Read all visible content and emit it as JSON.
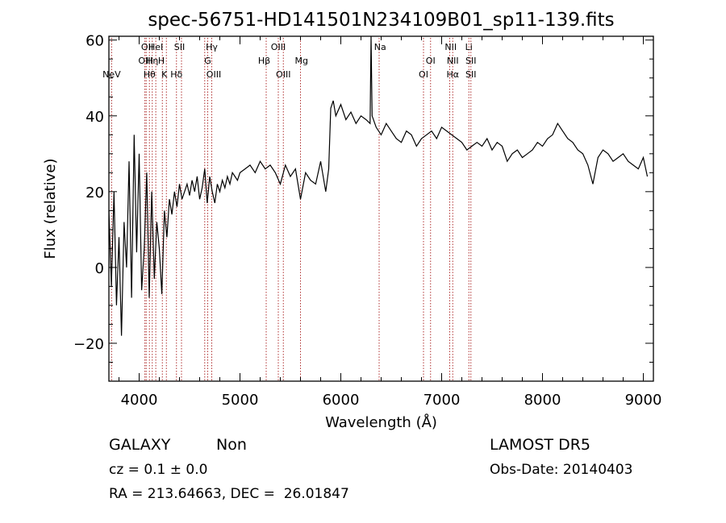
{
  "chart_data": {
    "type": "line",
    "title": "spec-56751-HD141501N234109B01_sp11-139.fits",
    "xlabel": "Wavelength (Å)",
    "ylabel": "Flux (relative)",
    "xlim": [
      3700,
      9100
    ],
    "ylim": [
      -30,
      61
    ],
    "xticks": [
      4000,
      5000,
      6000,
      7000,
      8000,
      9000
    ],
    "xtick_labels": [
      "4000",
      "5000",
      "6000",
      "7000",
      "8000",
      "9000"
    ],
    "yticks": [
      -20,
      0,
      20,
      40,
      60
    ],
    "ytick_labels": [
      "−20",
      "0",
      "20",
      "40",
      "60"
    ],
    "grid": false,
    "line_color": "#000000",
    "marker_color": "#b03030",
    "series": [
      {
        "x": [
          3700,
          3725,
          3750,
          3775,
          3800,
          3825,
          3850,
          3875,
          3900,
          3925,
          3950,
          3975,
          4000,
          4025,
          4050,
          4075,
          4100,
          4125,
          4150,
          4175,
          4200,
          4225,
          4250,
          4275,
          4300,
          4325,
          4350,
          4375,
          4400,
          4425,
          4450,
          4475,
          4500,
          4525,
          4550,
          4575,
          4600,
          4625,
          4650,
          4675,
          4700,
          4725,
          4750,
          4775,
          4800,
          4825,
          4850,
          4875,
          4900,
          4925,
          4950,
          4975,
          5000,
          5050,
          5100,
          5150,
          5200,
          5250,
          5300,
          5350,
          5400,
          5450,
          5500,
          5550,
          5600,
          5650,
          5700,
          5750,
          5800,
          5850,
          5880,
          5900,
          5925,
          5950,
          6000,
          6050,
          6100,
          6150,
          6200,
          6250,
          6290,
          6300,
          6310,
          6350,
          6400,
          6450,
          6500,
          6550,
          6600,
          6650,
          6700,
          6750,
          6800,
          6850,
          6900,
          6950,
          7000,
          7050,
          7100,
          7150,
          7200,
          7250,
          7300,
          7350,
          7400,
          7450,
          7500,
          7550,
          7600,
          7650,
          7700,
          7750,
          7800,
          7850,
          7900,
          7950,
          8000,
          8050,
          8100,
          8150,
          8200,
          8250,
          8300,
          8350,
          8400,
          8450,
          8500,
          8550,
          8600,
          8650,
          8700,
          8750,
          8800,
          8850,
          8900,
          8950,
          9000,
          9040
        ],
        "y": [
          15,
          -5,
          20,
          -10,
          8,
          -18,
          12,
          0,
          28,
          -8,
          35,
          4,
          30,
          -6,
          5,
          25,
          -8,
          20,
          -3,
          12,
          5,
          -7,
          15,
          8,
          18,
          14,
          20,
          16,
          22,
          18,
          20,
          22,
          19,
          23,
          20,
          24,
          18,
          21,
          26,
          17,
          24,
          20,
          17,
          22,
          20,
          23,
          21,
          24,
          22,
          25,
          24,
          23,
          25,
          26,
          27,
          25,
          28,
          26,
          27,
          25,
          22,
          27,
          24,
          26,
          18,
          25,
          23,
          22,
          28,
          20,
          26,
          42,
          44,
          40,
          43,
          39,
          41,
          38,
          40,
          39,
          38,
          61,
          40,
          37,
          35,
          38,
          36,
          34,
          33,
          36,
          35,
          32,
          34,
          35,
          36,
          34,
          37,
          36,
          35,
          34,
          33,
          31,
          32,
          33,
          32,
          34,
          31,
          33,
          32,
          28,
          30,
          31,
          29,
          30,
          31,
          33,
          32,
          34,
          35,
          38,
          36,
          34,
          33,
          31,
          30,
          27,
          22,
          29,
          31,
          30,
          28,
          29,
          30,
          28,
          27,
          26,
          29,
          24
        ]
      }
    ],
    "line_markers": [
      {
        "label": "NeV",
        "x": 3727,
        "row": 3
      },
      {
        "label": "OII",
        "x": 4080,
        "row": 1
      },
      {
        "label": "OIII",
        "x": 4065,
        "row": 2
      },
      {
        "label": "Hθ",
        "x": 4102,
        "row": 3
      },
      {
        "label": "Hη",
        "x": 4130,
        "row": 2
      },
      {
        "label": "HeI",
        "x": 4165,
        "row": 1
      },
      {
        "label": "H",
        "x": 4220,
        "row": 2
      },
      {
        "label": "K",
        "x": 4250,
        "row": 3
      },
      {
        "label": "Hδ",
        "x": 4370,
        "row": 3
      },
      {
        "label": "SII",
        "x": 4400,
        "row": 1
      },
      {
        "label": "Hγ",
        "x": 4720,
        "row": 1
      },
      {
        "label": "G",
        "x": 4680,
        "row": 2
      },
      {
        "label": "OIII",
        "x": 4740,
        "row": 3
      },
      {
        "label": "Hβ",
        "x": 5240,
        "row": 2
      },
      {
        "label": "OIII",
        "x": 5380,
        "row": 1
      },
      {
        "label": "OIII",
        "x": 5430,
        "row": 3
      },
      {
        "label": "Mg",
        "x": 5610,
        "row": 2
      },
      {
        "label": "Na",
        "x": 6390,
        "row": 1
      },
      {
        "label": "OI",
        "x": 6890,
        "row": 2
      },
      {
        "label": "OI",
        "x": 6820,
        "row": 3
      },
      {
        "label": "NII",
        "x": 7090,
        "row": 1
      },
      {
        "label": "NII",
        "x": 7110,
        "row": 2
      },
      {
        "label": "Hα",
        "x": 7110,
        "row": 3
      },
      {
        "label": "Li",
        "x": 7270,
        "row": 1
      },
      {
        "label": "SII",
        "x": 7290,
        "row": 2
      },
      {
        "label": "SII",
        "x": 7290,
        "row": 3
      }
    ],
    "marker_lines_x": [
      3727,
      4057,
      4070,
      4102,
      4130,
      4165,
      4230,
      4270,
      4370,
      4420,
      4650,
      4680,
      4720,
      5260,
      5380,
      5430,
      5600,
      6380,
      6820,
      6890,
      7080,
      7110,
      7270,
      7290
    ]
  },
  "info": {
    "object_class": "GALAXY",
    "subclass": "Non",
    "survey": "LAMOST DR5",
    "redshift": "cz = 0.1 ± 0.0",
    "obs_date": "Obs-Date: 20140403",
    "coords": "RA = 213.64663, DEC =  26.01847"
  }
}
